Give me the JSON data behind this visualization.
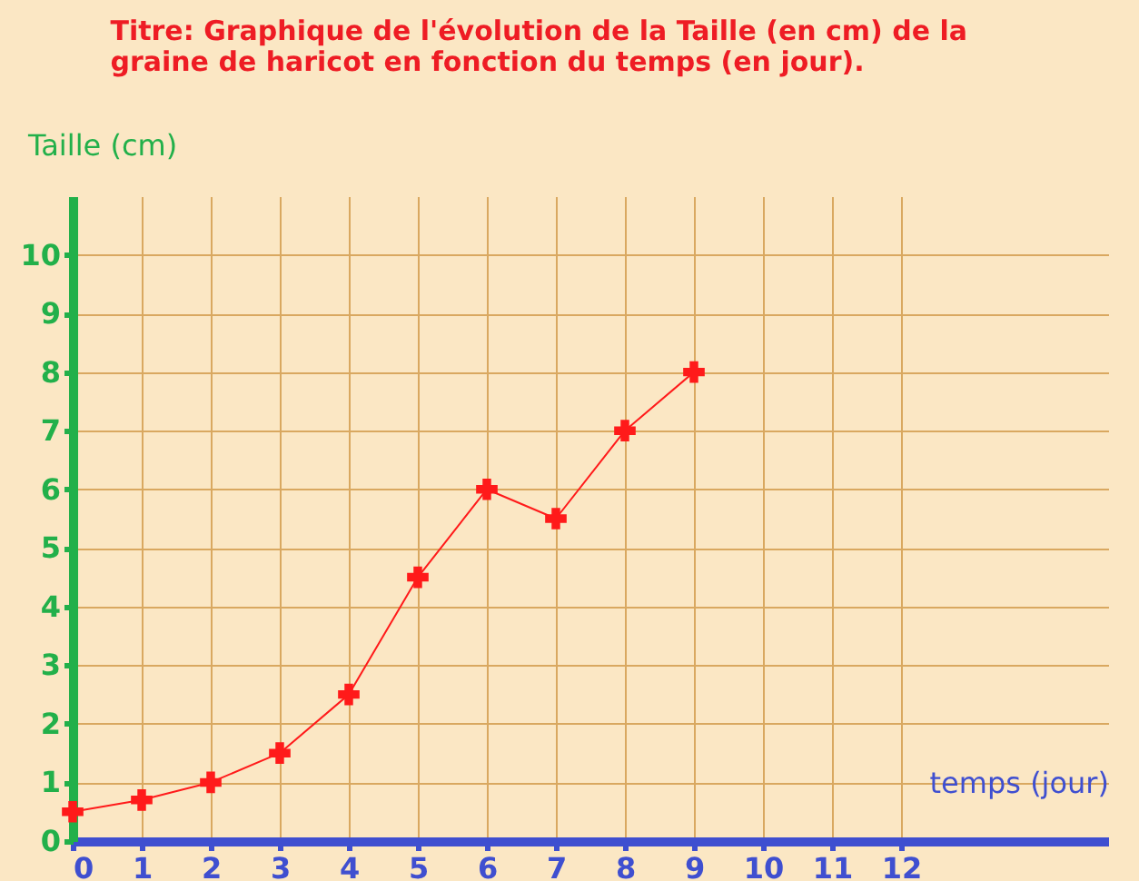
{
  "chart_data": {
    "type": "line",
    "title": "Titre: Graphique de l'évolution de la Taille (en cm) de la graine de haricot en fonction du temps (en jour).",
    "xlabel": "temps (jour)",
    "ylabel": "Taille (cm)",
    "x": [
      0,
      1,
      2,
      3,
      4,
      5,
      6,
      7,
      8,
      9
    ],
    "series": [
      {
        "color": "#ff1a1a",
        "values": [
          0.5,
          0.7,
          1,
          1.5,
          2.5,
          4.5,
          6,
          5.5,
          7,
          8
        ]
      }
    ],
    "xlim": [
      0,
      15
    ],
    "xticks": [
      0,
      1,
      2,
      3,
      4,
      5,
      6,
      7,
      8,
      9,
      10,
      11,
      12
    ],
    "ylim": [
      0,
      11
    ],
    "yticks": [
      0,
      1,
      2,
      3,
      4,
      5,
      6,
      7,
      8,
      9,
      10
    ],
    "grid": true,
    "marker": "cross",
    "line_style": "solid"
  }
}
